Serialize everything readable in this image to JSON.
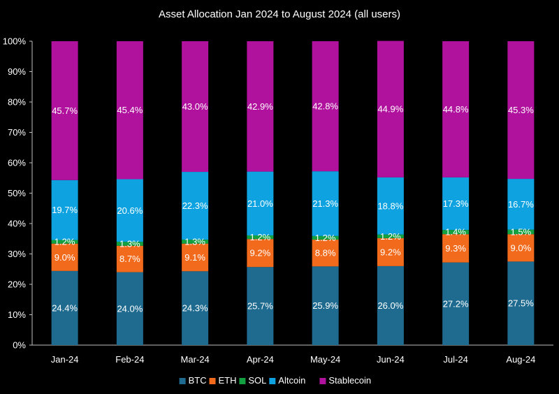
{
  "chart_data": {
    "type": "bar",
    "stacked": true,
    "title": "Asset Allocation Jan 2024 to August 2024 (all users)",
    "xlabel": "",
    "ylabel": "",
    "ylim": [
      0,
      100
    ],
    "y_ticks": [
      "0%",
      "10%",
      "20%",
      "30%",
      "40%",
      "50%",
      "60%",
      "70%",
      "80%",
      "90%",
      "100%"
    ],
    "categories": [
      "Jan-24",
      "Feb-24",
      "Mar-24",
      "Apr-24",
      "May-24",
      "Jun-24",
      "Jul-24",
      "Aug-24"
    ],
    "legend_position": "bottom",
    "series": [
      {
        "name": "BTC",
        "color": "#1f6b8f",
        "values": [
          24.4,
          24.0,
          24.3,
          25.7,
          25.9,
          26.0,
          27.2,
          27.5
        ]
      },
      {
        "name": "ETH",
        "color": "#f26a1b",
        "values": [
          9.0,
          8.7,
          9.1,
          9.2,
          8.8,
          9.2,
          9.3,
          9.0
        ]
      },
      {
        "name": "SOL",
        "color": "#12a040",
        "values": [
          1.2,
          1.3,
          1.3,
          1.2,
          1.2,
          1.2,
          1.4,
          1.5
        ]
      },
      {
        "name": "Altcoin",
        "color": "#0ea3e0",
        "values": [
          19.7,
          20.6,
          22.3,
          21.0,
          21.3,
          18.8,
          17.3,
          16.7
        ]
      },
      {
        "name": "Stablecoin",
        "color": "#b0119d",
        "values": [
          45.7,
          45.4,
          43.0,
          42.9,
          42.8,
          44.9,
          44.8,
          45.3
        ]
      }
    ]
  }
}
